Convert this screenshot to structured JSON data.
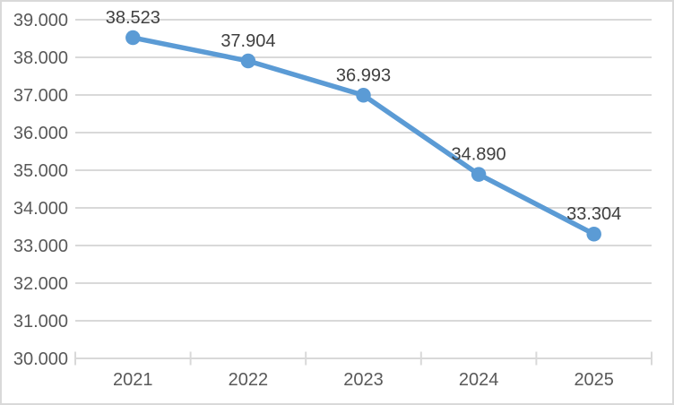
{
  "chart_data": {
    "type": "line",
    "title": "",
    "xlabel": "",
    "ylabel": "",
    "categories": [
      "2021",
      "2022",
      "2023",
      "2024",
      "2025"
    ],
    "series": [
      {
        "name": "",
        "values": [
          38523,
          37904,
          36993,
          34890,
          33304
        ],
        "data_labels": [
          "38.523",
          "37.904",
          "36.993",
          "34.890",
          "33.304"
        ]
      }
    ],
    "ylim": [
      30000,
      39000
    ],
    "y_step": 1000,
    "y_tick_labels": [
      "30.000",
      "31.000",
      "32.000",
      "33.000",
      "34.000",
      "35.000",
      "36.000",
      "37.000",
      "38.000",
      "39.000"
    ],
    "grid": "horizontal",
    "legend": "none",
    "marker": "circle",
    "number_format": "dot-as-thousands-separator",
    "colors": {
      "line": "#5B9BD5",
      "marker": "#5B9BD5",
      "gridline": "#D9D9D9",
      "axis_line": "#D9D9D9",
      "axis_text": "#595959",
      "data_label_text": "#404040",
      "chart_border": "#D9D9D9",
      "background": "#FFFFFF"
    }
  }
}
